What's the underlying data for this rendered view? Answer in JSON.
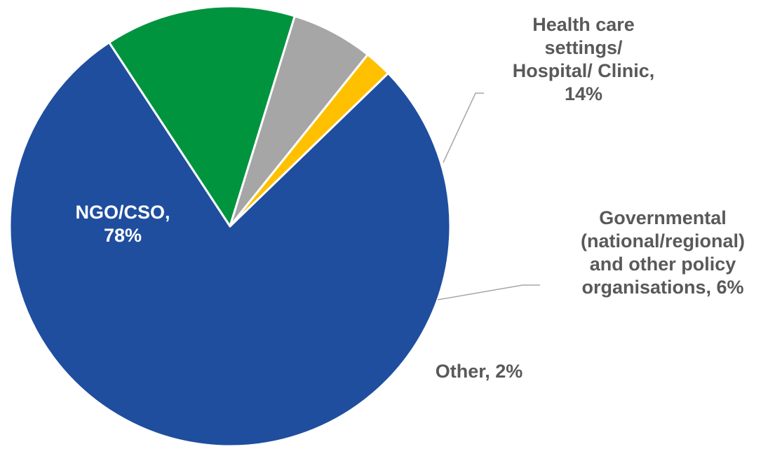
{
  "chart_data": {
    "type": "pie",
    "slices": [
      {
        "label": "NGO/CSO, 78%",
        "lines": [
          "NGO/CSO,",
          "78%"
        ],
        "value": 78,
        "color": "#1f4e9f",
        "label_color": "#ffffff"
      },
      {
        "label": "Health care settings/ Hospital/ Clinic, 14%",
        "lines": [
          "Health care",
          "settings/",
          "Hospital/ Clinic,",
          "14%"
        ],
        "value": 14,
        "color": "#00943f",
        "label_color": "#595959"
      },
      {
        "label": "Governmental (national/regional) and other policy organisations, 6%",
        "lines": [
          "Governmental",
          "(national/regional)",
          "and other policy",
          "organisations, 6%"
        ],
        "value": 6,
        "color": "#a6a6a6",
        "label_color": "#595959"
      },
      {
        "label": "Other, 2%",
        "lines": [
          "Other, 2%"
        ],
        "value": 2,
        "color": "#ffc000",
        "label_color": "#595959"
      }
    ],
    "legend": "none"
  }
}
